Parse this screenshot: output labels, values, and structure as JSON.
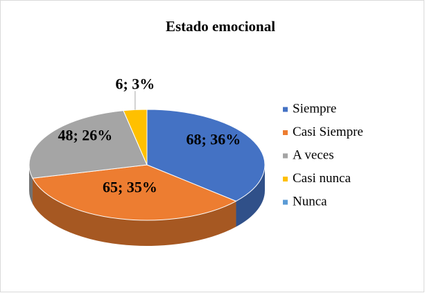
{
  "chart_data": {
    "type": "pie3d",
    "title": "Estado emocional",
    "categories": [
      "Siempre",
      "Casi Siempre",
      "A veces",
      "Casi nunca",
      "Nunca"
    ],
    "values": [
      68,
      65,
      48,
      6,
      0
    ],
    "value_labels": [
      "68; 36%",
      "65; 35%",
      "48; 26%",
      "6; 3%",
      null
    ],
    "colors": [
      "#4472c4",
      "#ed7d31",
      "#a5a5a5",
      "#ffc000",
      "#5b9bd5"
    ],
    "legend": "right"
  }
}
